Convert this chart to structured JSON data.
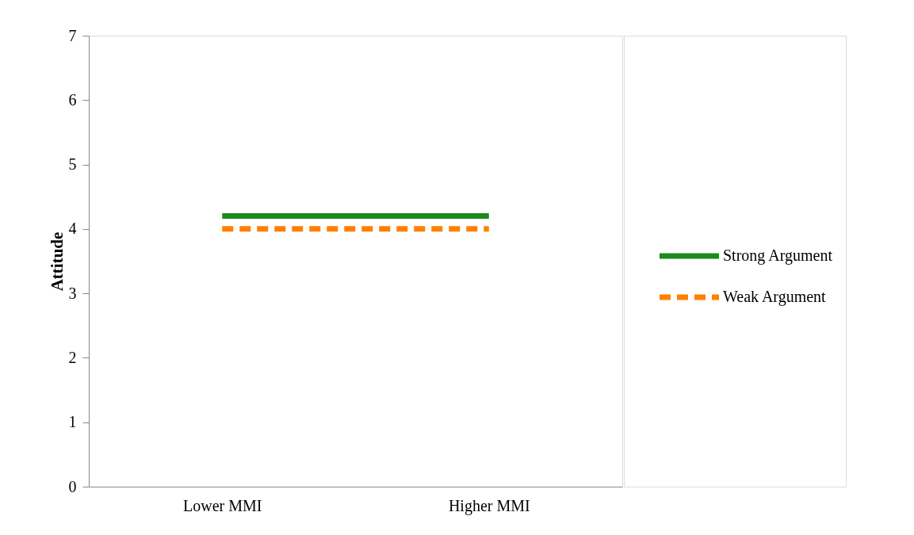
{
  "chart_data": {
    "type": "line",
    "ylabel": "Attitude",
    "categories": [
      "Lower MMI",
      "Higher MMI"
    ],
    "series": [
      {
        "name": "Strong Argument",
        "color": "#1a8a1a",
        "values": [
          4.2,
          4.2
        ],
        "line_style": "solid"
      },
      {
        "name": "Weak Argument",
        "color": "#ff8000",
        "values": [
          4.0,
          4.0
        ],
        "line_style": "dashed"
      }
    ],
    "ylim": [
      0,
      7
    ],
    "yticks": [
      0,
      1,
      2,
      3,
      4,
      5,
      6,
      7
    ],
    "grid": false,
    "legend": "right",
    "marker": "none"
  }
}
